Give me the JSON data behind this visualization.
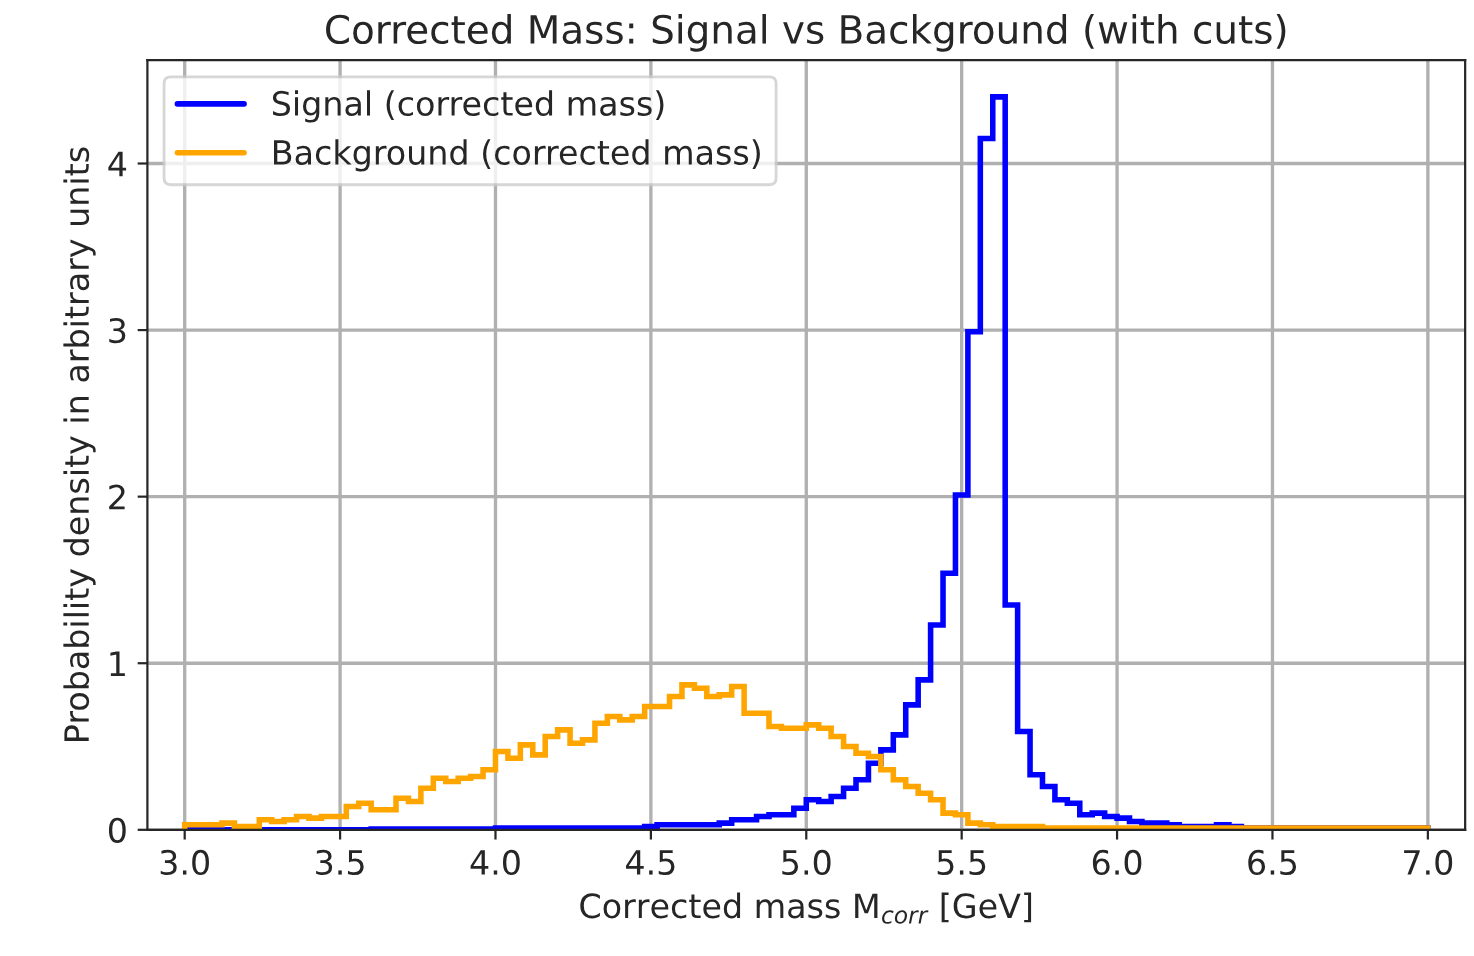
{
  "chart_data": {
    "type": "histogram",
    "title": "Corrected Mass: Signal vs Background (with cuts)",
    "xlabel": "Corrected mass M$_{corr}$ [GeV]",
    "ylabel": "Probability density in arbitrary units",
    "bins": [
      3.0,
      3.04,
      3.08,
      3.12,
      3.16,
      3.2,
      3.24,
      3.28,
      3.32,
      3.36,
      3.4,
      3.44,
      3.48,
      3.52,
      3.56,
      3.6,
      3.64,
      3.68,
      3.72,
      3.76,
      3.8,
      3.84,
      3.88,
      3.92,
      3.96,
      4.0,
      4.04,
      4.08,
      4.12,
      4.16,
      4.2,
      4.24,
      4.28,
      4.32,
      4.36,
      4.4,
      4.44,
      4.48,
      4.52,
      4.56,
      4.6,
      4.64,
      4.68,
      4.72,
      4.76,
      4.8,
      4.84,
      4.88,
      4.92,
      4.96,
      5.0,
      5.04,
      5.08,
      5.12,
      5.16,
      5.2,
      5.24,
      5.28,
      5.32,
      5.36,
      5.4,
      5.44,
      5.48,
      5.52,
      5.56,
      5.6,
      5.64,
      5.68,
      5.72,
      5.76,
      5.8,
      5.84,
      5.88,
      5.92,
      5.96,
      6.0,
      6.04,
      6.08,
      6.12,
      6.16,
      6.2,
      6.24,
      6.28,
      6.32,
      6.36,
      6.4,
      6.44,
      6.48,
      6.52,
      6.56,
      6.6,
      6.64,
      6.68,
      6.72,
      6.76,
      6.8,
      6.84,
      6.88,
      6.92,
      6.96,
      7.0
    ],
    "series": [
      {
        "name": "Signal (corrected mass)",
        "color": "#0000ff",
        "values": [
          0,
          0,
          0,
          0,
          0,
          0,
          0,
          0,
          0,
          0,
          0,
          0,
          0,
          0,
          0,
          0.005,
          0.005,
          0.005,
          0.005,
          0.005,
          0.005,
          0.005,
          0.005,
          0.005,
          0.005,
          0.01,
          0.01,
          0.01,
          0.01,
          0.01,
          0.01,
          0.01,
          0.01,
          0.01,
          0.01,
          0.01,
          0.01,
          0.02,
          0.03,
          0.03,
          0.03,
          0.03,
          0.03,
          0.04,
          0.06,
          0.06,
          0.08,
          0.09,
          0.09,
          0.13,
          0.18,
          0.17,
          0.2,
          0.25,
          0.3,
          0.4,
          0.48,
          0.57,
          0.75,
          0.9,
          1.23,
          1.54,
          2.01,
          2.99,
          4.15,
          4.4,
          1.35,
          0.59,
          0.33,
          0.26,
          0.18,
          0.16,
          0.09,
          0.1,
          0.08,
          0.07,
          0.05,
          0.04,
          0.04,
          0.03,
          0.02,
          0.02,
          0.02,
          0.03,
          0.02,
          0.01,
          0.01,
          0.01,
          0.01,
          0.01,
          0.01,
          0.01,
          0.01,
          0.01,
          0.01,
          0.01,
          0.01,
          0.01,
          0.01,
          0.01
        ]
      },
      {
        "name": "Background (corrected mass)",
        "color": "#ffa500",
        "values": [
          0.03,
          0.03,
          0.03,
          0.04,
          0.02,
          0.02,
          0.06,
          0.05,
          0.06,
          0.08,
          0.07,
          0.08,
          0.08,
          0.14,
          0.16,
          0.12,
          0.12,
          0.19,
          0.17,
          0.25,
          0.31,
          0.29,
          0.31,
          0.32,
          0.36,
          0.47,
          0.43,
          0.51,
          0.45,
          0.56,
          0.6,
          0.52,
          0.54,
          0.64,
          0.68,
          0.66,
          0.68,
          0.74,
          0.74,
          0.8,
          0.87,
          0.85,
          0.8,
          0.81,
          0.86,
          0.7,
          0.7,
          0.62,
          0.61,
          0.61,
          0.63,
          0.61,
          0.56,
          0.5,
          0.46,
          0.44,
          0.36,
          0.3,
          0.26,
          0.22,
          0.18,
          0.1,
          0.09,
          0.04,
          0.03,
          0.02,
          0.02,
          0.02,
          0.02,
          0.01,
          0.01,
          0.01,
          0.01,
          0.01,
          0.01,
          0.01,
          0.01,
          0.01,
          0.01,
          0.01,
          0.01,
          0.01,
          0.01,
          0.01,
          0.01,
          0.01,
          0.01,
          0.01,
          0.01,
          0.01,
          0.01,
          0.01,
          0.01,
          0.01,
          0.01,
          0.01,
          0.01,
          0.01,
          0.01,
          0.01
        ]
      }
    ],
    "xlim": [
      2.88,
      7.12
    ],
    "ylim": [
      0,
      4.62
    ],
    "xticks": [
      {
        "value": 3.0,
        "label": "3.0"
      },
      {
        "value": 3.5,
        "label": "3.5"
      },
      {
        "value": 4.0,
        "label": "4.0"
      },
      {
        "value": 4.5,
        "label": "4.5"
      },
      {
        "value": 5.0,
        "label": "5.0"
      },
      {
        "value": 5.5,
        "label": "5.5"
      },
      {
        "value": 6.0,
        "label": "6.0"
      },
      {
        "value": 6.5,
        "label": "6.5"
      },
      {
        "value": 7.0,
        "label": "7.0"
      }
    ],
    "yticks": [
      0,
      1,
      2,
      3,
      4
    ],
    "grid": true,
    "legend": "top left"
  }
}
